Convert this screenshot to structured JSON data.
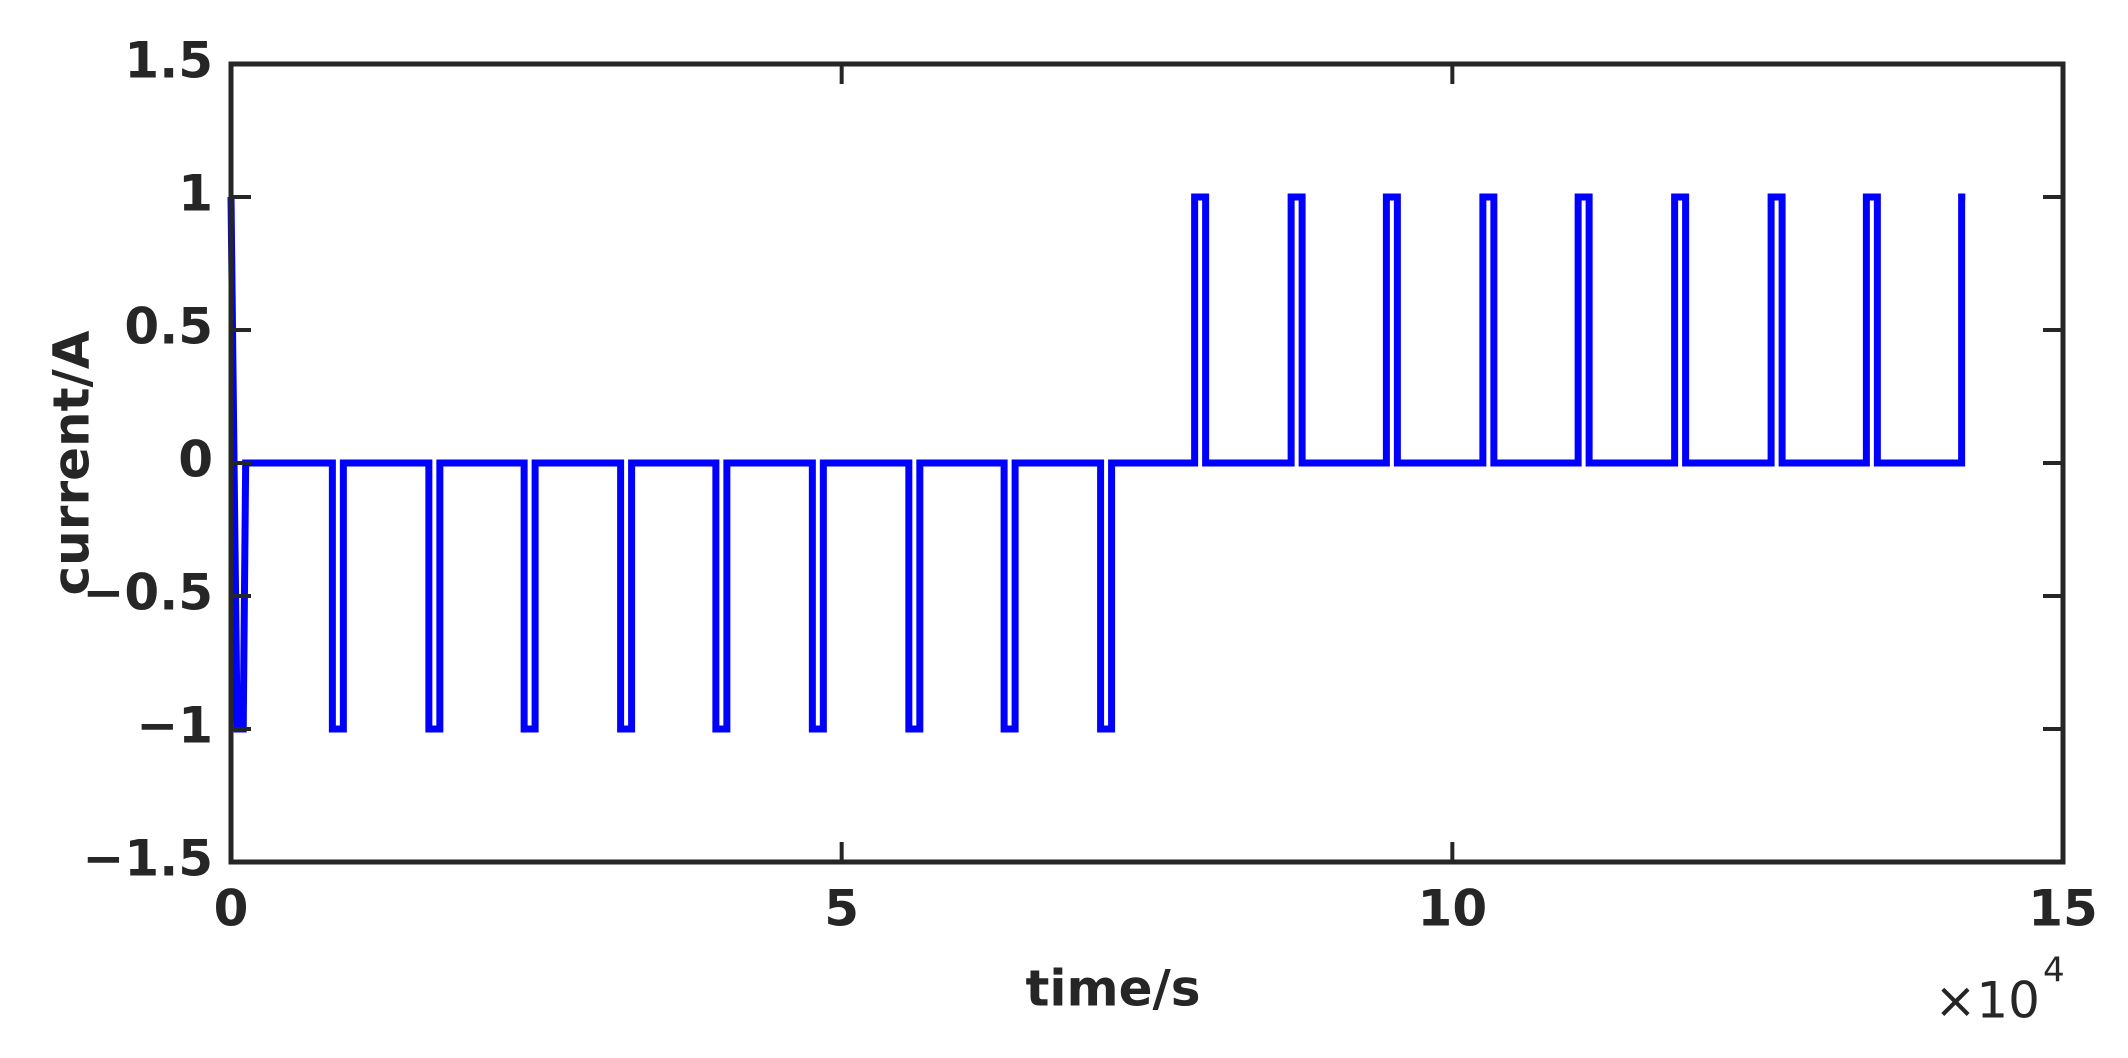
{
  "chart_data": {
    "type": "line",
    "xlabel": "time/s",
    "ylabel": "current/A",
    "x_multiplier": "×10",
    "x_multiplier_exponent": "4",
    "xlim": [
      0,
      15
    ],
    "xticks": [
      0,
      5,
      10,
      15
    ],
    "ylim": [
      -1.5,
      1.5
    ],
    "yticks": [
      {
        "value": -1.5,
        "label": "−1.5"
      },
      {
        "value": -1,
        "label": "−1"
      },
      {
        "value": -0.5,
        "label": "−0.5"
      },
      0,
      0.5,
      1,
      1.5
    ],
    "x": [
      0,
      0.05,
      0.1,
      0.12,
      0.83,
      0.83,
      0.92,
      0.92,
      1.62,
      1.62,
      1.71,
      1.71,
      2.4,
      2.4,
      2.49,
      2.49,
      3.19,
      3.19,
      3.28,
      3.28,
      3.97,
      3.97,
      4.06,
      4.06,
      4.76,
      4.76,
      4.85,
      4.85,
      5.55,
      5.55,
      5.64,
      5.64,
      6.33,
      6.33,
      6.42,
      6.42,
      7.12,
      7.12,
      7.21,
      7.21,
      7.89,
      7.89,
      7.98,
      7.98,
      8.68,
      8.68,
      8.77,
      8.77,
      9.46,
      9.46,
      9.55,
      9.55,
      10.25,
      10.25,
      10.34,
      10.34,
      11.03,
      11.03,
      11.12,
      11.12,
      11.82,
      11.82,
      11.91,
      11.91,
      12.61,
      12.61,
      12.7,
      12.7,
      13.39,
      13.39,
      13.48,
      13.48,
      14.17,
      14.17,
      14.2
    ],
    "series": [
      {
        "color": "#0000ff",
        "values": [
          1,
          -1,
          -1,
          0,
          0,
          -1,
          -1,
          0,
          0,
          -1,
          -1,
          0,
          0,
          -1,
          -1,
          0,
          0,
          -1,
          -1,
          0,
          0,
          -1,
          -1,
          0,
          0,
          -1,
          -1,
          0,
          0,
          -1,
          -1,
          0,
          0,
          -1,
          -1,
          0,
          0,
          -1,
          -1,
          0,
          0,
          1,
          1,
          0,
          0,
          1,
          1,
          0,
          0,
          1,
          1,
          0,
          0,
          1,
          1,
          0,
          0,
          1,
          1,
          0,
          0,
          1,
          1,
          0,
          0,
          1,
          1,
          0,
          0,
          1,
          1,
          0,
          0,
          1,
          1
        ]
      }
    ]
  }
}
